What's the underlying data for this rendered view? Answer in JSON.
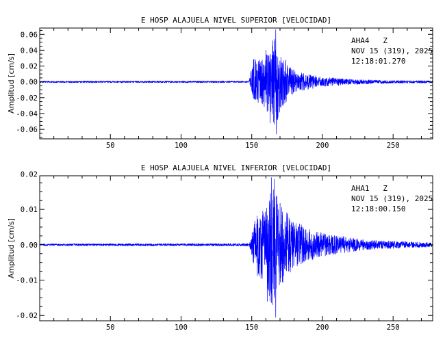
{
  "colors": {
    "trace": "#0000ff",
    "axes": "#000000",
    "background": "#ffffff"
  },
  "chart_data": [
    {
      "type": "line",
      "title": "E HOSP ALAJUELA NIVEL SUPERIOR [VELOCIDAD]",
      "ylabel": "Amplitud [cm/s]",
      "xlabel": "",
      "xlim": [
        0,
        278
      ],
      "ylim": [
        -0.072,
        0.068
      ],
      "xticks": [
        50,
        100,
        150,
        200,
        250
      ],
      "yticks": [
        0.06,
        0.04,
        0.02,
        0.0,
        -0.02,
        -0.04,
        -0.06
      ],
      "ytick_labels": [
        "0.06",
        "0.04",
        "0.02",
        "0.00",
        "-0.02",
        "-0.04",
        "-0.06"
      ],
      "grid": false,
      "annotation": [
        "AHA4   Z",
        "NOV 15 (319), 2025",
        "12:18:01.270"
      ],
      "series": [
        {
          "envelope": [
            [
              0,
              0.0012
            ],
            [
              148,
              0.0012
            ],
            [
              150,
              0.02
            ],
            [
              152,
              0.035
            ],
            [
              155,
              0.03
            ],
            [
              158,
              0.03
            ],
            [
              161,
              0.042
            ],
            [
              163,
              0.04
            ],
            [
              165,
              0.05
            ],
            [
              167,
              0.066
            ],
            [
              169,
              0.048
            ],
            [
              171,
              0.035
            ],
            [
              174,
              0.03
            ],
            [
              177,
              0.02
            ],
            [
              182,
              0.014
            ],
            [
              190,
              0.01
            ],
            [
              200,
              0.0065
            ],
            [
              215,
              0.004
            ],
            [
              240,
              0.0022
            ],
            [
              278,
              0.0015
            ]
          ],
          "peaks": [
            [
              167,
              0.066
            ],
            [
              167.5,
              -0.066
            ],
            [
              160,
              0.04
            ],
            [
              163,
              -0.052
            ],
            [
              165,
              0.052
            ]
          ]
        }
      ]
    },
    {
      "type": "line",
      "title": "E HOSP ALAJUELA NIVEL INFERIOR [VELOCIDAD]",
      "ylabel": "Amplitud [cm/s]",
      "xlabel": "",
      "xlim": [
        0,
        278
      ],
      "ylim": [
        -0.0215,
        0.0195
      ],
      "xticks": [
        50,
        100,
        150,
        200,
        250
      ],
      "yticks": [
        0.02,
        0.01,
        0.0,
        -0.01,
        -0.02
      ],
      "ytick_labels": [
        "0.02",
        "0.01",
        "0.00",
        "-0.01",
        "-0.02"
      ],
      "grid": false,
      "annotation": [
        "AHA1   Z",
        "NOV 15 (319), 2025",
        "12:18:00.150"
      ],
      "series": [
        {
          "envelope": [
            [
              0,
              0.0003
            ],
            [
              148,
              0.0004
            ],
            [
              150,
              0.003
            ],
            [
              152,
              0.008
            ],
            [
              155,
              0.01
            ],
            [
              158,
              0.011
            ],
            [
              160,
              0.0125
            ],
            [
              162,
              0.015
            ],
            [
              164,
              0.019
            ],
            [
              166,
              0.019
            ],
            [
              168,
              0.015
            ],
            [
              170,
              0.013
            ],
            [
              174,
              0.01
            ],
            [
              178,
              0.008
            ],
            [
              185,
              0.006
            ],
            [
              195,
              0.004
            ],
            [
              210,
              0.0028
            ],
            [
              230,
              0.0015
            ],
            [
              278,
              0.0006
            ]
          ],
          "peaks": [
            [
              164,
              0.019
            ],
            [
              166,
              0.0185
            ],
            [
              163,
              -0.016
            ],
            [
              167,
              -0.0205
            ],
            [
              161,
              -0.016
            ]
          ]
        }
      ]
    }
  ]
}
